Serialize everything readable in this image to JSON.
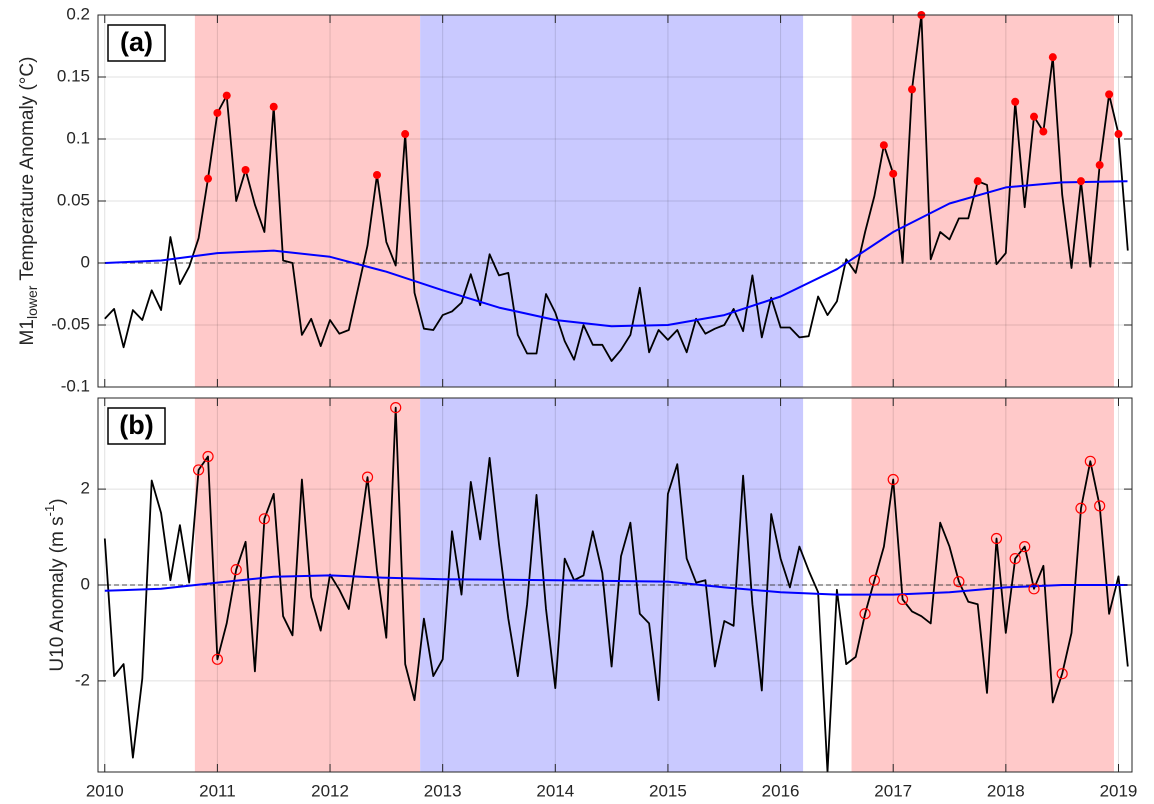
{
  "chart_data": [
    {
      "type": "line",
      "panel_label": "(a)",
      "ylabel": {
        "main": "M1",
        "sub": "lower",
        "rest": " Temperature Anomaly (°C)"
      },
      "xlim": [
        2009.94,
        2019.12
      ],
      "ylim": [
        -0.1,
        0.2
      ],
      "xticks": [
        2010,
        2011,
        2012,
        2013,
        2014,
        2015,
        2016,
        2017,
        2018,
        2019
      ],
      "xticklabels": false,
      "yticks": [
        -0.1,
        -0.05,
        0,
        0.05,
        0.1,
        0.15,
        0.2
      ],
      "grid": true,
      "zero_line": true,
      "spans": [
        {
          "start": 2010.8,
          "end": 2012.8,
          "color": "#ffc9c9"
        },
        {
          "start": 2012.8,
          "end": 2016.2,
          "color": "#c9c9ff"
        },
        {
          "start": 2016.63,
          "end": 2018.96,
          "color": "#ffc9c9"
        }
      ],
      "series": [
        {
          "type": "line",
          "color": "#000000",
          "x": [
            2010,
            2010.083,
            2010.167,
            2010.25,
            2010.333,
            2010.417,
            2010.5,
            2010.583,
            2010.667,
            2010.75,
            2010.833,
            2010.917,
            2011,
            2011.083,
            2011.167,
            2011.25,
            2011.333,
            2011.417,
            2011.5,
            2011.583,
            2011.667,
            2011.75,
            2011.833,
            2011.917,
            2012,
            2012.083,
            2012.167,
            2012.25,
            2012.333,
            2012.417,
            2012.5,
            2012.583,
            2012.667,
            2012.75,
            2012.833,
            2012.917,
            2013,
            2013.083,
            2013.167,
            2013.25,
            2013.333,
            2013.417,
            2013.5,
            2013.583,
            2013.667,
            2013.75,
            2013.833,
            2013.917,
            2014,
            2014.083,
            2014.167,
            2014.25,
            2014.333,
            2014.417,
            2014.5,
            2014.583,
            2014.667,
            2014.75,
            2014.833,
            2014.917,
            2015,
            2015.083,
            2015.167,
            2015.25,
            2015.333,
            2015.417,
            2015.5,
            2015.583,
            2015.667,
            2015.75,
            2015.833,
            2015.917,
            2016,
            2016.083,
            2016.167,
            2016.25,
            2016.333,
            2016.417,
            2016.5,
            2016.583,
            2016.667,
            2016.75,
            2016.833,
            2016.917,
            2017,
            2017.083,
            2017.167,
            2017.25,
            2017.333,
            2017.417,
            2017.5,
            2017.583,
            2017.667,
            2017.75,
            2017.833,
            2017.917,
            2018,
            2018.083,
            2018.167,
            2018.25,
            2018.333,
            2018.417,
            2018.5,
            2018.583,
            2018.667,
            2018.75,
            2018.833,
            2018.917,
            2019,
            2019.083
          ],
          "values": [
            -0.045,
            -0.037,
            -0.068,
            -0.038,
            -0.046,
            -0.022,
            -0.038,
            0.021,
            -0.017,
            -0.003,
            0.02,
            0.068,
            0.121,
            0.135,
            0.05,
            0.075,
            0.047,
            0.025,
            0.126,
            0.002,
            0,
            -0.058,
            -0.045,
            -0.067,
            -0.046,
            -0.057,
            -0.054,
            -0.02,
            0.014,
            0.071,
            0.017,
            -0.002,
            0.104,
            -0.024,
            -0.053,
            -0.054,
            -0.042,
            -0.039,
            -0.032,
            -0.009,
            -0.034,
            0.007,
            -0.01,
            -0.008,
            -0.058,
            -0.073,
            -0.073,
            -0.025,
            -0.04,
            -0.063,
            -0.078,
            -0.05,
            -0.066,
            -0.066,
            -0.079,
            -0.07,
            -0.058,
            -0.02,
            -0.072,
            -0.054,
            -0.062,
            -0.054,
            -0.072,
            -0.045,
            -0.057,
            -0.053,
            -0.05,
            -0.037,
            -0.055,
            -0.01,
            -0.06,
            -0.028,
            -0.052,
            -0.052,
            -0.06,
            -0.059,
            -0.027,
            -0.042,
            -0.031,
            0.003,
            -0.008,
            0.025,
            0.054,
            0.095,
            0.072,
            0,
            0.14,
            0.2,
            0.003,
            0.025,
            0.019,
            0.036,
            0.036,
            0.066,
            0.063,
            -0.001,
            0.008,
            0.13,
            0.045,
            0.118,
            0.106,
            0.166,
            0.055,
            -0.004,
            0.066,
            -0.003,
            0.079,
            0.136,
            0.104,
            0.01
          ]
        },
        {
          "type": "scatter",
          "marker": "filled",
          "color": "#ff0000",
          "x": [
            2010.917,
            2011,
            2011.083,
            2011.25,
            2011.5,
            2012.417,
            2012.667,
            2016.917,
            2017,
            2017.167,
            2017.25,
            2017.75,
            2018.083,
            2018.25,
            2018.333,
            2018.417,
            2018.667,
            2018.833,
            2018.917,
            2019
          ],
          "values": [
            0.068,
            0.121,
            0.135,
            0.075,
            0.126,
            0.071,
            0.104,
            0.095,
            0.072,
            0.14,
            0.2,
            0.066,
            0.13,
            0.118,
            0.106,
            0.166,
            0.066,
            0.079,
            0.136,
            0.104
          ]
        },
        {
          "type": "line",
          "color": "#0000ff",
          "x": [
            2010,
            2010.5,
            2011,
            2011.5,
            2012,
            2012.5,
            2013,
            2013.5,
            2014,
            2014.5,
            2015,
            2015.5,
            2016,
            2016.5,
            2017,
            2017.5,
            2018,
            2018.5,
            2019.08
          ],
          "values": [
            0,
            0.002,
            0.008,
            0.01,
            0.005,
            -0.007,
            -0.022,
            -0.036,
            -0.046,
            -0.051,
            -0.05,
            -0.042,
            -0.027,
            -0.005,
            0.025,
            0.048,
            0.061,
            0.065,
            0.066
          ]
        }
      ]
    },
    {
      "type": "line",
      "panel_label": "(b)",
      "ylabel": {
        "main": "U10 Anomaly (m s",
        "sup": "-1",
        "rest": ")"
      },
      "xlim": [
        2009.94,
        2019.12
      ],
      "ylim": [
        -3.9,
        3.9
      ],
      "xticks": [
        2010,
        2011,
        2012,
        2013,
        2014,
        2015,
        2016,
        2017,
        2018,
        2019
      ],
      "xticklabels": true,
      "yticks": [
        -2,
        0,
        2
      ],
      "grid": true,
      "zero_line": true,
      "spans": [
        {
          "start": 2010.8,
          "end": 2012.8,
          "color": "#ffc9c9"
        },
        {
          "start": 2012.8,
          "end": 2016.2,
          "color": "#c9c9ff"
        },
        {
          "start": 2016.63,
          "end": 2018.96,
          "color": "#ffc9c9"
        }
      ],
      "series": [
        {
          "type": "line",
          "color": "#000000",
          "x": [
            2010,
            2010.083,
            2010.167,
            2010.25,
            2010.333,
            2010.417,
            2010.5,
            2010.583,
            2010.667,
            2010.75,
            2010.833,
            2010.917,
            2011,
            2011.083,
            2011.167,
            2011.25,
            2011.333,
            2011.417,
            2011.5,
            2011.583,
            2011.667,
            2011.75,
            2011.833,
            2011.917,
            2012,
            2012.083,
            2012.167,
            2012.25,
            2012.333,
            2012.417,
            2012.5,
            2012.583,
            2012.667,
            2012.75,
            2012.833,
            2012.917,
            2013,
            2013.083,
            2013.167,
            2013.25,
            2013.333,
            2013.417,
            2013.5,
            2013.583,
            2013.667,
            2013.75,
            2013.833,
            2013.917,
            2014,
            2014.083,
            2014.167,
            2014.25,
            2014.333,
            2014.417,
            2014.5,
            2014.583,
            2014.667,
            2014.75,
            2014.833,
            2014.917,
            2015,
            2015.083,
            2015.167,
            2015.25,
            2015.333,
            2015.417,
            2015.5,
            2015.583,
            2015.667,
            2015.75,
            2015.833,
            2015.917,
            2016,
            2016.083,
            2016.167,
            2016.25,
            2016.333,
            2016.417,
            2016.5,
            2016.583,
            2016.667,
            2016.75,
            2016.833,
            2016.917,
            2017,
            2017.083,
            2017.167,
            2017.25,
            2017.333,
            2017.417,
            2017.5,
            2017.583,
            2017.667,
            2017.75,
            2017.833,
            2017.917,
            2018,
            2018.083,
            2018.167,
            2018.25,
            2018.333,
            2018.417,
            2018.5,
            2018.583,
            2018.667,
            2018.75,
            2018.833,
            2018.917,
            2019,
            2019.083
          ],
          "values": [
            0.97,
            -1.9,
            -1.65,
            -3.6,
            -1.95,
            2.18,
            1.5,
            0.1,
            1.25,
            0.05,
            2.4,
            2.68,
            -1.55,
            -0.8,
            0.32,
            0.9,
            -1.8,
            1.38,
            1.9,
            -0.65,
            -1.05,
            2.2,
            -0.25,
            -0.95,
            0.22,
            -0.1,
            -0.5,
            0.85,
            2.25,
            0.3,
            -1.1,
            3.7,
            -1.65,
            -2.4,
            -0.7,
            -1.9,
            -1.55,
            1.12,
            -0.2,
            2.15,
            0.95,
            2.65,
            0.85,
            -0.7,
            -1.9,
            -0.4,
            1.88,
            -0.5,
            -2.15,
            0.55,
            0.1,
            0.2,
            1.12,
            0.25,
            -1.7,
            0.6,
            1.3,
            -0.6,
            -0.8,
            -2.4,
            1.9,
            2.52,
            0.55,
            0.05,
            0.1,
            -1.7,
            -0.75,
            -0.85,
            2.28,
            -0.4,
            -2.2,
            1.48,
            0.55,
            -0.05,
            0.8,
            0.3,
            -0.15,
            -3.9,
            -0.1,
            -1.65,
            -1.5,
            -0.6,
            0.1,
            0.8,
            2.2,
            -0.3,
            -0.55,
            -0.65,
            -0.8,
            1.3,
            0.8,
            0.07,
            -0.35,
            -0.4,
            -2.25,
            0.97,
            -1,
            0.55,
            0.8,
            -0.08,
            0.4,
            -2.45,
            -1.85,
            -1,
            1.6,
            2.58,
            1.65,
            -0.6,
            0.18,
            -1.7
          ]
        },
        {
          "type": "scatter",
          "marker": "open",
          "color": "#ff0000",
          "x": [
            2010.833,
            2010.917,
            2011,
            2011.167,
            2011.417,
            2012.333,
            2012.583,
            2016.75,
            2016.833,
            2017,
            2017.083,
            2017.583,
            2017.917,
            2018.083,
            2018.167,
            2018.25,
            2018.5,
            2018.667,
            2018.75,
            2018.833
          ],
          "values": [
            2.4,
            2.68,
            -1.55,
            0.32,
            1.38,
            2.25,
            3.7,
            -0.6,
            0.1,
            2.2,
            -0.3,
            0.07,
            0.97,
            0.55,
            0.8,
            -0.08,
            -1.85,
            1.6,
            2.58,
            1.65
          ]
        },
        {
          "type": "line",
          "color": "#0000ff",
          "x": [
            2010,
            2010.5,
            2011,
            2011.5,
            2012,
            2012.5,
            2013,
            2014,
            2015,
            2015.5,
            2016,
            2016.5,
            2017,
            2017.5,
            2018,
            2018.5,
            2019.08
          ],
          "values": [
            -0.12,
            -0.08,
            0.05,
            0.17,
            0.2,
            0.15,
            0.12,
            0.1,
            0.07,
            -0.05,
            -0.15,
            -0.2,
            -0.2,
            -0.15,
            -0.05,
            0,
            0
          ]
        }
      ]
    }
  ]
}
